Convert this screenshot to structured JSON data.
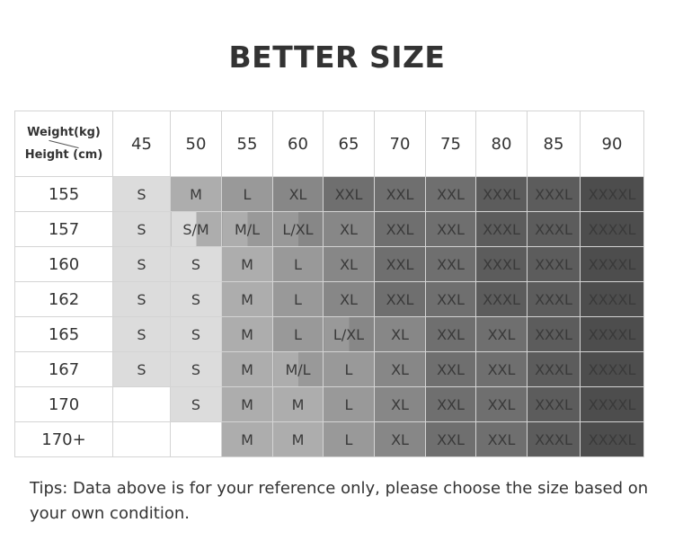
{
  "title": "BETTER SIZE",
  "table": {
    "corner_top": "Weight(kg)",
    "corner_bottom": "Height (cm)",
    "weights": [
      "45",
      "50",
      "55",
      "60",
      "65",
      "70",
      "75",
      "80",
      "85",
      "90"
    ],
    "rows": [
      {
        "height": "155",
        "cells": [
          "S",
          "M",
          "L",
          "XL",
          "XXL",
          "XXL",
          "XXL",
          "XXXL",
          "XXXL",
          "XXXXL"
        ]
      },
      {
        "height": "157",
        "cells": [
          "S",
          "S/M",
          "M/L",
          "L/XL",
          "XL",
          "XXL",
          "XXL",
          "XXXL",
          "XXXL",
          "XXXXL"
        ]
      },
      {
        "height": "160",
        "cells": [
          "S",
          "S",
          "M",
          "L",
          "XL",
          "XXL",
          "XXL",
          "XXXL",
          "XXXL",
          "XXXXL"
        ]
      },
      {
        "height": "162",
        "cells": [
          "S",
          "S",
          "M",
          "L",
          "XL",
          "XXL",
          "XXL",
          "XXXL",
          "XXXL",
          "XXXXL"
        ]
      },
      {
        "height": "165",
        "cells": [
          "S",
          "S",
          "M",
          "L",
          "L/XL",
          "XL",
          "XXL",
          "XXL",
          "XXXL",
          "XXXXL"
        ]
      },
      {
        "height": "167",
        "cells": [
          "S",
          "S",
          "M",
          "M/L",
          "L",
          "XL",
          "XXL",
          "XXL",
          "XXXL",
          "XXXXL"
        ]
      },
      {
        "height": "170",
        "cells": [
          "",
          "S",
          "M",
          "M",
          "L",
          "XL",
          "XXL",
          "XXL",
          "XXXL",
          "XXXXL"
        ]
      },
      {
        "height": "170+",
        "cells": [
          "",
          "",
          "M",
          "M",
          "L",
          "XL",
          "XXL",
          "XXL",
          "XXXL",
          "XXXXL"
        ]
      }
    ],
    "size_colors": {
      "S": "#dcdcdc",
      "M": "#adadad",
      "L": "#999999",
      "XL": "#878787",
      "XXL": "#6f6f6f",
      "XXXL": "#5c5c5c",
      "XXXXL": "#4d4d4d",
      "": "#ffffff"
    }
  },
  "tips": "Tips: Data above is for your reference only, please choose the size based on your own condition."
}
